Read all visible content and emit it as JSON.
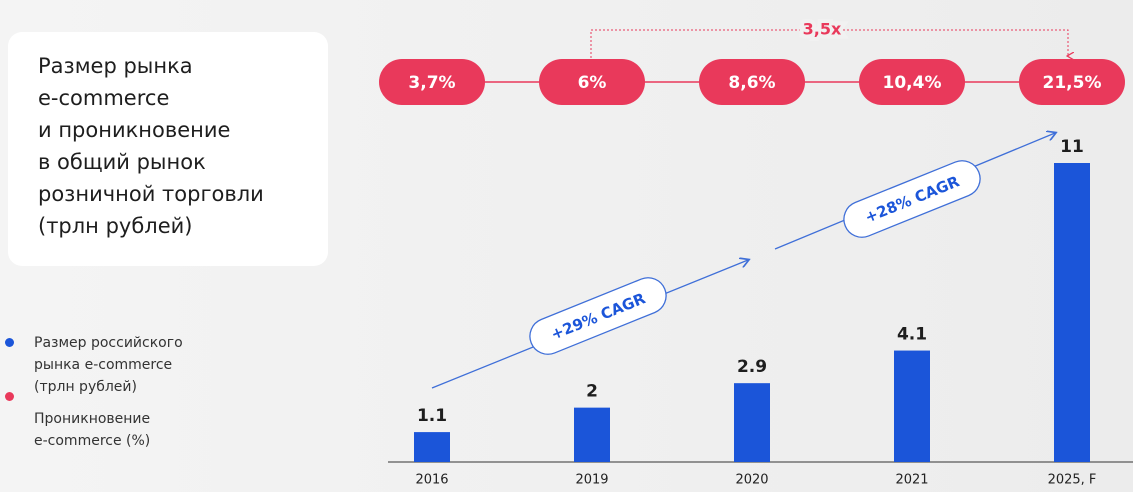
{
  "chart_data": {
    "type": "bar",
    "title": "Размер рынка\ne-commerce\nи проникновение\nв общий рынок\nрозничной торговли\n(трлн рублей)",
    "categories": [
      "2016",
      "2019",
      "2020",
      "2021",
      "2025, F"
    ],
    "series": [
      {
        "name": "Размер российского\nрынка  e-commerce\n(трлн рублей)",
        "color": "#1b55d9",
        "values": [
          1.1,
          2,
          2.9,
          4.1,
          11
        ]
      },
      {
        "name": "Проникновение\ne-commerce (%)",
        "color": "#e9395b",
        "values": [
          3.7,
          6,
          8.6,
          10.4,
          21.5
        ],
        "value_labels": [
          "3,7%",
          "6%",
          "8,6%",
          "10,4%",
          "21,5%"
        ]
      }
    ],
    "annotations": [
      "3,5x",
      "+29% CAGR",
      "+28% CAGR"
    ]
  }
}
